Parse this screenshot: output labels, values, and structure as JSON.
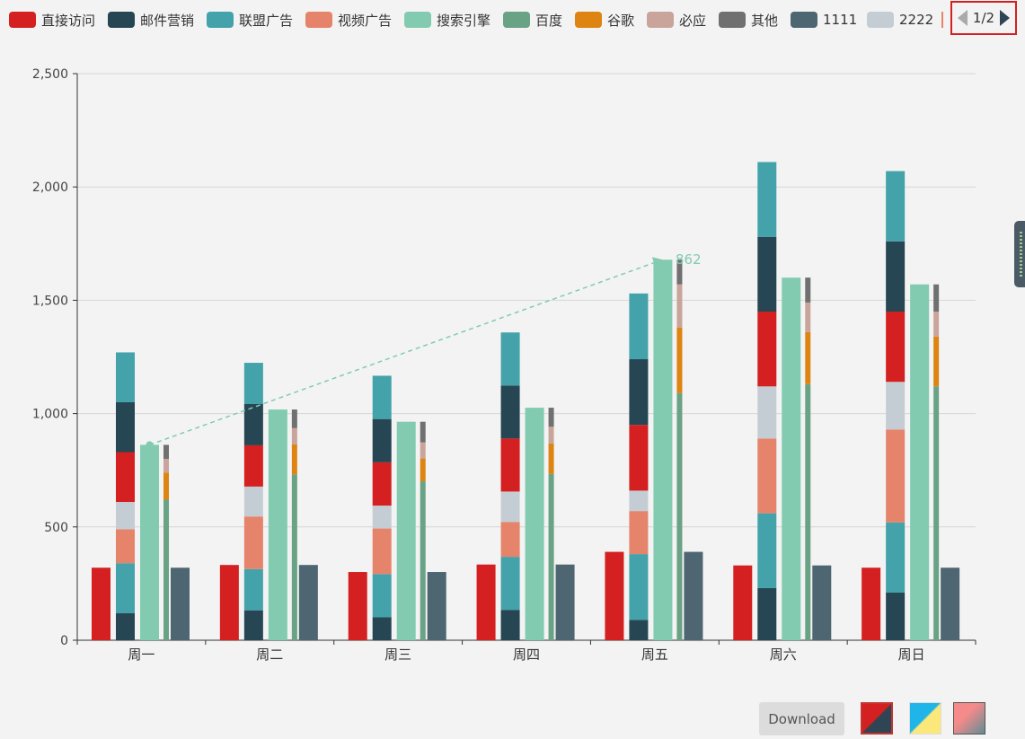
{
  "legend": [
    {
      "name": "直接访问",
      "color": "#d42020"
    },
    {
      "name": "邮件营销",
      "color": "#264653"
    },
    {
      "name": "联盟广告",
      "color": "#44a2ab"
    },
    {
      "name": "视频广告",
      "color": "#e5846a"
    },
    {
      "name": "搜索引擎",
      "color": "#82cbb1"
    },
    {
      "name": "百度",
      "color": "#6aa285"
    },
    {
      "name": "谷歌",
      "color": "#dd8412"
    },
    {
      "name": "必应",
      "color": "#c9a49a"
    },
    {
      "name": "其他",
      "color": "#707070"
    },
    {
      "name": "1111",
      "color": "#4e6672"
    },
    {
      "name": "2222",
      "color": "#c5cdd4"
    }
  ],
  "pager": {
    "text": "1/2"
  },
  "download_label": "Download",
  "chart_data": {
    "type": "bar",
    "categories": [
      "周一",
      "周二",
      "周三",
      "周四",
      "周五",
      "周六",
      "周日"
    ],
    "ylim": [
      0,
      2500
    ],
    "yticks": [
      0,
      500,
      1000,
      1500,
      2000,
      2500
    ],
    "ytick_labels": [
      "0",
      "500",
      "1,000",
      "1,500",
      "2,000",
      "2,500"
    ],
    "series": [
      {
        "name": "直接访问",
        "color": "#d42020",
        "values": [
          320,
          332,
          301,
          334,
          390,
          330,
          320
        ]
      },
      {
        "name": "邮件营销",
        "stack": "广告",
        "color": "#264653",
        "values": [
          120,
          132,
          101,
          134,
          90,
          230,
          210
        ]
      },
      {
        "name": "联盟广告",
        "stack": "广告",
        "color": "#44a2ab",
        "values": [
          220,
          182,
          191,
          234,
          290,
          330,
          310
        ]
      },
      {
        "name": "视频广告",
        "stack": "广告",
        "color": "#e5846a",
        "values": [
          150,
          232,
          201,
          154,
          190,
          330,
          410
        ]
      },
      {
        "name": "2222",
        "stack": "广告",
        "color": "#c5cdd4",
        "values": [
          120,
          132,
          101,
          134,
          90,
          230,
          210
        ]
      },
      {
        "name": "直接访问",
        "stack": "广告",
        "color": "#d42020",
        "values": [
          220,
          182,
          191,
          234,
          290,
          330,
          310
        ]
      },
      {
        "name": "邮件营销",
        "stack": "广告",
        "color": "#264653",
        "values": [
          220,
          182,
          191,
          234,
          290,
          330,
          310
        ]
      },
      {
        "name": "联盟广告",
        "stack": "广告",
        "color": "#44a2ab",
        "values": [
          220,
          182,
          191,
          234,
          290,
          330,
          310
        ]
      },
      {
        "name": "搜索引擎",
        "color": "#82cbb1",
        "values": [
          862,
          1018,
          964,
          1026,
          1679,
          1600,
          1570
        ]
      },
      {
        "name": "百度",
        "stack": "搜索引擎",
        "color": "#6aa285",
        "values": [
          620,
          732,
          701,
          734,
          1090,
          1130,
          1120
        ]
      },
      {
        "name": "谷歌",
        "stack": "搜索引擎",
        "color": "#dd8412",
        "values": [
          120,
          132,
          101,
          134,
          290,
          230,
          220
        ]
      },
      {
        "name": "必应",
        "stack": "搜索引擎",
        "color": "#c9a49a",
        "values": [
          60,
          72,
          71,
          74,
          190,
          130,
          110
        ]
      },
      {
        "name": "其他",
        "stack": "搜索引擎",
        "color": "#707070",
        "values": [
          62,
          82,
          91,
          84,
          109,
          110,
          120
        ]
      },
      {
        "name": "1111",
        "color": "#4e6672",
        "values": [
          320,
          332,
          301,
          334,
          390,
          330,
          320
        ]
      }
    ],
    "markline": {
      "series": "搜索引擎",
      "from": "周一",
      "to": "周五",
      "from_value": 862,
      "to_value": 1679,
      "label": "862"
    }
  }
}
